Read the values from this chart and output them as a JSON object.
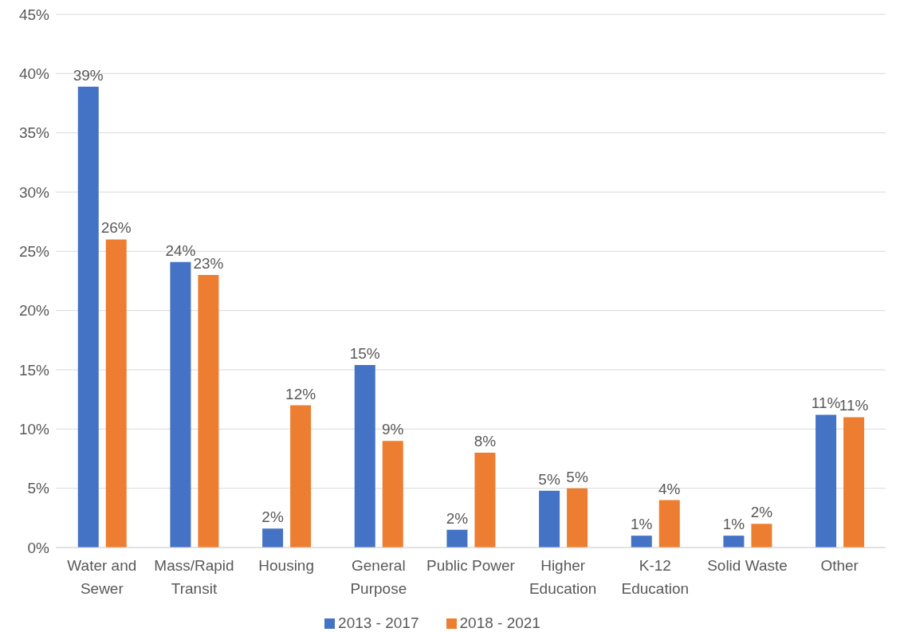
{
  "chart_data": {
    "type": "bar",
    "categories": [
      "Water and Sewer",
      "Mass/Rapid Transit",
      "Housing",
      "General Purpose",
      "Public Power",
      "Higher Education",
      "K-12 Education",
      "Solid Waste",
      "Other"
    ],
    "series": [
      {
        "name": "2013 - 2017",
        "color": "#4472c4",
        "values": [
          38.9,
          24.1,
          1.6,
          15.4,
          1.5,
          4.8,
          1.0,
          1.0,
          11.2
        ],
        "value_labels": [
          "39%",
          "24%",
          "2%",
          "15%",
          "2%",
          "5%",
          "1%",
          "1%",
          "11%"
        ]
      },
      {
        "name": "2018 - 2021",
        "color": "#ed7d31",
        "values": [
          26,
          23,
          12,
          9,
          8,
          5,
          4,
          2,
          11
        ],
        "value_labels": [
          "26%",
          "23%",
          "12%",
          "9%",
          "8%",
          "5%",
          "4%",
          "2%",
          "11%"
        ]
      }
    ],
    "ylim": [
      0,
      45
    ],
    "yticks": [
      {
        "value": 0,
        "label": "0%"
      },
      {
        "value": 5,
        "label": "5%"
      },
      {
        "value": 10,
        "label": "10%"
      },
      {
        "value": 15,
        "label": "15%"
      },
      {
        "value": 20,
        "label": "20%"
      },
      {
        "value": 25,
        "label": "25%"
      },
      {
        "value": 30,
        "label": "30%"
      },
      {
        "value": 35,
        "label": "35%"
      },
      {
        "value": 40,
        "label": "40%"
      },
      {
        "value": 45,
        "label": "45%"
      }
    ],
    "grid": "y",
    "legend": "bottom"
  }
}
